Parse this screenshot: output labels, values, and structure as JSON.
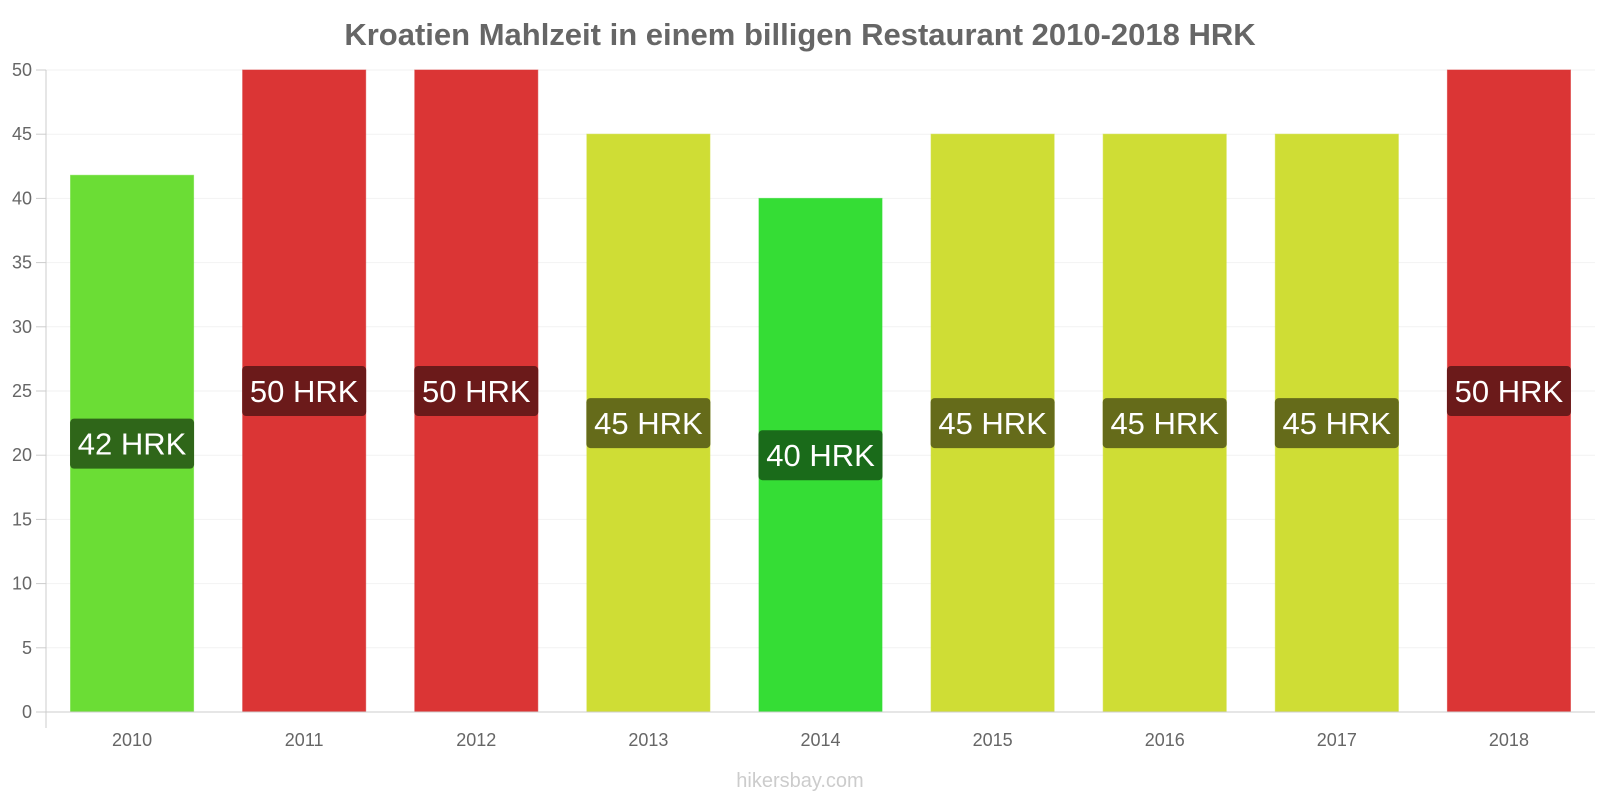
{
  "chart_data": {
    "type": "bar",
    "title": "Kroatien Mahlzeit in einem billigen Restaurant 2010-2018 HRK",
    "xlabel": "",
    "ylabel": "",
    "categories": [
      "2010",
      "2011",
      "2012",
      "2013",
      "2014",
      "2015",
      "2016",
      "2017",
      "2018"
    ],
    "values": [
      41.8,
      50,
      50,
      45,
      40,
      45,
      45,
      45,
      50
    ],
    "data_labels": [
      "42 HRK",
      "50 HRK",
      "50 HRK",
      "45 HRK",
      "40 HRK",
      "45 HRK",
      "45 HRK",
      "45 HRK",
      "50 HRK"
    ],
    "ylim": [
      0,
      50
    ],
    "yticks": [
      0,
      5,
      10,
      15,
      20,
      25,
      30,
      35,
      40,
      45,
      50
    ],
    "grid": true,
    "legend": "none",
    "bar_colors": [
      "#6bdd35",
      "#db3535",
      "#db3535",
      "#cfdd35",
      "#35dd35",
      "#cfdd35",
      "#cfdd35",
      "#cfdd35",
      "#db3535"
    ],
    "label_colors": [
      "#2f6619",
      "#6b1a1a",
      "#6b1a1a",
      "#656b1a",
      "#1a6b1a",
      "#656b1a",
      "#656b1a",
      "#656b1a",
      "#6b1a1a"
    ]
  },
  "watermark": "hikersbay.com"
}
